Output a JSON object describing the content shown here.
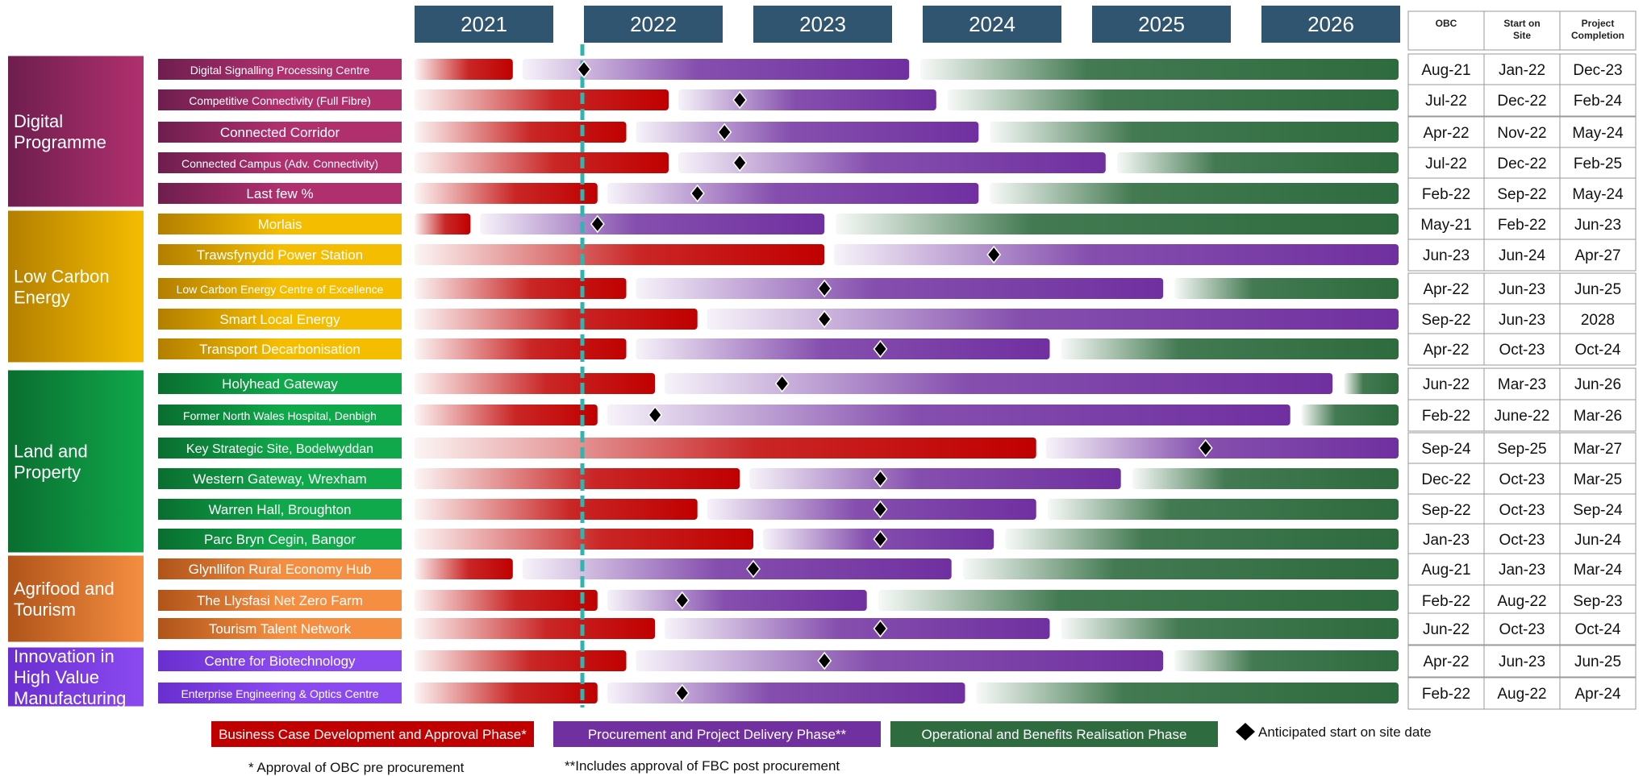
{
  "chart_data": {
    "type": "gantt",
    "years": [
      "2021",
      "2022",
      "2023",
      "2024",
      "2025",
      "2026"
    ],
    "current_date_marker": "2022-01",
    "table_headers": [
      "OBC",
      "Start on Site",
      "Project Completion"
    ],
    "programmes": [
      {
        "name": "Digital Programme",
        "color_dark": "#6e1e4e",
        "color_light": "#b0306e",
        "label_size": 19,
        "projects": [
          {
            "name": "Digital Signalling Processing Centre",
            "obc": "Aug-21",
            "start_on_site": "Jan-22",
            "completion": "Dec-23",
            "obc_t": 2021.58,
            "start_t": 2022.0,
            "comp_t": 2023.92
          },
          {
            "name": "Competitive Connectivity (Full Fibre)",
            "obc": "Jul-22",
            "start_on_site": "Dec-22",
            "completion": "Feb-24",
            "obc_t": 2022.5,
            "start_t": 2022.92,
            "comp_t": 2024.08
          },
          {
            "name": "Connected Corridor",
            "obc": "Apr-22",
            "start_on_site": "Nov-22",
            "completion": "May-24",
            "obc_t": 2022.25,
            "start_t": 2022.83,
            "comp_t": 2024.33
          },
          {
            "name": "Connected Campus (Adv. Connectivity)",
            "obc": "Jul-22",
            "start_on_site": "Dec-22",
            "completion": "Feb-25",
            "obc_t": 2022.5,
            "start_t": 2022.92,
            "comp_t": 2025.08
          },
          {
            "name": "Last few %",
            "obc": "Feb-22",
            "start_on_site": "Sep-22",
            "completion": "May-24",
            "obc_t": 2022.08,
            "start_t": 2022.67,
            "comp_t": 2024.33
          }
        ]
      },
      {
        "name": "Low Carbon Energy",
        "color_dark": "#b37f00",
        "color_light": "#f5bd00",
        "label_size": 17,
        "projects": [
          {
            "name": "Morlais",
            "obc": "May-21",
            "start_on_site": "Feb-22",
            "completion": "Jun-23",
            "obc_t": 2021.33,
            "start_t": 2022.08,
            "comp_t": 2023.42
          },
          {
            "name": "Trawsfynydd Power Station",
            "obc": "Jun-23",
            "start_on_site": "Jun-24",
            "completion": "Apr-27",
            "obc_t": 2023.42,
            "start_t": 2024.42,
            "comp_t": 2027.25
          },
          {
            "name": "Low Carbon Energy Centre of Excellence",
            "obc": "Apr-22",
            "start_on_site": "Jun-23",
            "completion": "Jun-25",
            "obc_t": 2022.25,
            "start_t": 2023.42,
            "comp_t": 2025.42
          },
          {
            "name": "Smart Local Energy",
            "obc": "Sep-22",
            "start_on_site": "Jun-23",
            "completion": "2028",
            "obc_t": 2022.67,
            "start_t": 2023.42,
            "comp_t": 2028.0
          },
          {
            "name": "Transport Decarbonisation",
            "obc": "Apr-22",
            "start_on_site": "Oct-23",
            "completion": "Oct-24",
            "obc_t": 2022.25,
            "start_t": 2023.75,
            "comp_t": 2024.75
          }
        ]
      },
      {
        "name": "Land and Property",
        "color_dark": "#0a6e30",
        "color_light": "#0fa84a",
        "label_size": 17,
        "projects": [
          {
            "name": "Holyhead Gateway",
            "obc": "Jun-22",
            "start_on_site": "Mar-23",
            "completion": "Jun-26",
            "obc_t": 2022.42,
            "start_t": 2023.17,
            "comp_t": 2026.42
          },
          {
            "name": "Former North Wales Hospital, Denbigh",
            "obc": "Feb-22",
            "start_on_site": "June-22",
            "completion": "Mar-26",
            "obc_t": 2022.08,
            "start_t": 2022.42,
            "comp_t": 2026.17
          },
          {
            "name": "Key Strategic Site, Bodelwyddan",
            "obc": "Sep-24",
            "start_on_site": "Sep-25",
            "completion": "Mar-27",
            "obc_t": 2024.67,
            "start_t": 2025.67,
            "comp_t": 2027.17
          },
          {
            "name": "Western Gateway, Wrexham",
            "obc": "Dec-22",
            "start_on_site": "Oct-23",
            "completion": "Mar-25",
            "obc_t": 2022.92,
            "start_t": 2023.75,
            "comp_t": 2025.17
          },
          {
            "name": "Warren Hall, Broughton",
            "obc": "Sep-22",
            "start_on_site": "Oct-23",
            "completion": "Sep-24",
            "obc_t": 2022.67,
            "start_t": 2023.75,
            "comp_t": 2024.67
          },
          {
            "name": "Parc Bryn Cegin, Bangor",
            "obc": "Jan-23",
            "start_on_site": "Oct-23",
            "completion": "Jun-24",
            "obc_t": 2023.0,
            "start_t": 2023.75,
            "comp_t": 2024.42
          }
        ]
      },
      {
        "name": "Agrifood and Tourism",
        "color_dark": "#b0541a",
        "color_light": "#f58e40",
        "label_size": 17,
        "projects": [
          {
            "name": "Glynllifon Rural Economy Hub",
            "obc": "Aug-21",
            "start_on_site": "Jan-23",
            "completion": "Mar-24",
            "obc_t": 2021.58,
            "start_t": 2023.0,
            "comp_t": 2024.17
          },
          {
            "name": "The Llysfasi Net Zero Farm",
            "obc": "Feb-22",
            "start_on_site": "Aug-22",
            "completion": "Sep-23",
            "obc_t": 2022.08,
            "start_t": 2022.58,
            "comp_t": 2023.67
          },
          {
            "name": "Tourism Talent Network",
            "obc": "Jun-22",
            "start_on_site": "Oct-23",
            "completion": "Oct-24",
            "obc_t": 2022.42,
            "start_t": 2023.75,
            "comp_t": 2024.75
          }
        ]
      },
      {
        "name": "Innovation in High Value Manufacturing",
        "color_dark": "#6a2fd0",
        "color_light": "#8a4af0",
        "label_size": 17,
        "projects": [
          {
            "name": "Centre for Biotechnology",
            "obc": "Apr-22",
            "start_on_site": "Jun-23",
            "completion": "Jun-25",
            "obc_t": 2022.25,
            "start_t": 2023.42,
            "comp_t": 2025.42
          },
          {
            "name": "Enterprise Engineering & Optics Centre",
            "obc": "Feb-22",
            "start_on_site": "Aug-22",
            "completion": "Apr-24",
            "obc_t": 2022.08,
            "start_t": 2022.58,
            "comp_t": 2024.25
          }
        ]
      }
    ],
    "legend": [
      {
        "label": "Business Case Development and Approval Phase*",
        "color": "#c00000"
      },
      {
        "label": "Procurement and Project Delivery Phase**",
        "color": "#7030a0"
      },
      {
        "label": "Operational and Benefits Realisation Phase",
        "color": "#2e6b3e"
      },
      {
        "label": "Anticipated start on site date",
        "color": "#000000"
      }
    ],
    "footnotes": [
      "* Approval of OBC pre procurement",
      "**Includes approval of FBC post procurement"
    ],
    "colors": {
      "year_header": "#2f5570",
      "business_case": "#c00000",
      "procurement": "#7030a0",
      "operational": "#2e6b3e",
      "today_line": "#2fb5b0"
    }
  }
}
